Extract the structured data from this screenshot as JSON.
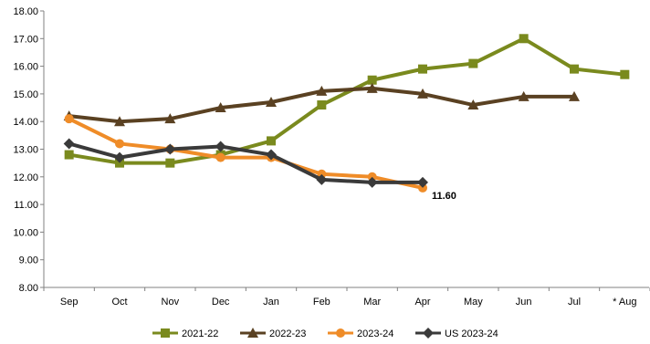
{
  "chart_data": {
    "type": "line",
    "categories": [
      "Sep",
      "Oct",
      "Nov",
      "Dec",
      "Jan",
      "Feb",
      "Mar",
      "Apr",
      "May",
      "Jun",
      "Jul",
      "* Aug"
    ],
    "y_ticks": [
      "8.00",
      "9.00",
      "10.00",
      "11.00",
      "12.00",
      "13.00",
      "14.00",
      "15.00",
      "16.00",
      "17.00",
      "18.00"
    ],
    "ylim": [
      8,
      18
    ],
    "grid": false,
    "legend_position": "bottom",
    "series": [
      {
        "name": "2021-22",
        "color": "#7a8a1e",
        "marker": "square",
        "values": [
          12.8,
          12.5,
          12.5,
          12.8,
          13.3,
          14.6,
          15.5,
          15.9,
          16.1,
          17.0,
          15.9,
          15.7
        ]
      },
      {
        "name": "2022-23",
        "color": "#5a4122",
        "marker": "triangle",
        "values": [
          14.2,
          14.0,
          14.1,
          14.5,
          14.7,
          15.1,
          15.2,
          15.0,
          14.6,
          14.9,
          14.9,
          null
        ]
      },
      {
        "name": "2023-24",
        "color": "#ef8c28",
        "marker": "circle",
        "values": [
          14.1,
          13.2,
          13.0,
          12.7,
          12.7,
          12.1,
          12.0,
          11.6,
          null,
          null,
          null,
          null
        ]
      },
      {
        "name": "US 2023-24",
        "color": "#3a3a3a",
        "marker": "diamond",
        "values": [
          13.2,
          12.7,
          13.0,
          13.1,
          12.8,
          11.9,
          11.8,
          11.8,
          null,
          null,
          null,
          null
        ]
      }
    ],
    "annotations": [
      {
        "text": "11.60",
        "series": "2023-24",
        "category": "Apr"
      }
    ]
  }
}
